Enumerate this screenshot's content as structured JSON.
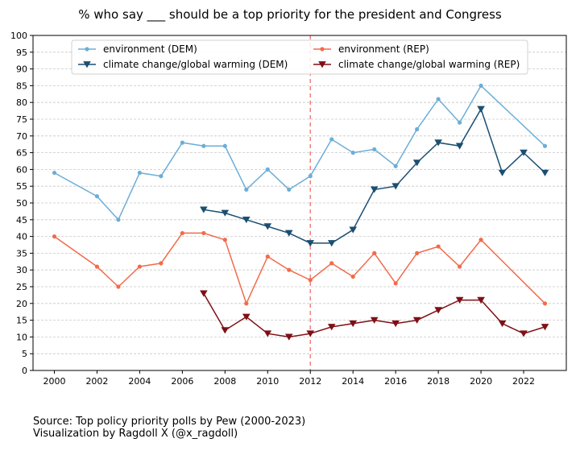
{
  "chart_data": {
    "type": "line",
    "title": "% who say ___ should be a top priority for the president and Congress",
    "xlabel": "",
    "ylabel": "",
    "xlim": [
      1999,
      2024
    ],
    "ylim": [
      0,
      100
    ],
    "xticks": [
      2000,
      2002,
      2004,
      2006,
      2008,
      2010,
      2012,
      2014,
      2016,
      2018,
      2020,
      2022
    ],
    "yticks": [
      0,
      5,
      10,
      15,
      20,
      25,
      30,
      35,
      40,
      45,
      50,
      55,
      60,
      65,
      70,
      75,
      80,
      85,
      90,
      95,
      100
    ],
    "grid": "y-dashed",
    "legend_position": "top",
    "vline": {
      "x": 2012,
      "color": "#f08080",
      "style": "dashed"
    },
    "series": [
      {
        "name": "environment (DEM)",
        "color": "#6baed6",
        "marker": "dot",
        "x": [
          2000,
          2002,
          2003,
          2004,
          2005,
          2006,
          2007,
          2008,
          2009,
          2010,
          2011,
          2012,
          2013,
          2014,
          2015,
          2016,
          2017,
          2018,
          2019,
          2020,
          2023
        ],
        "y": [
          59,
          52,
          45,
          59,
          58,
          68,
          67,
          67,
          54,
          60,
          54,
          58,
          69,
          65,
          66,
          61,
          72,
          81,
          74,
          85,
          67
        ]
      },
      {
        "name": "climate change/global warming (DEM)",
        "color": "#1b4f72",
        "marker": "triangle-down",
        "x": [
          2007,
          2008,
          2009,
          2010,
          2011,
          2012,
          2013,
          2014,
          2015,
          2016,
          2017,
          2018,
          2019,
          2020,
          2021,
          2022,
          2023
        ],
        "y": [
          48,
          47,
          45,
          43,
          41,
          38,
          38,
          42,
          54,
          55,
          62,
          68,
          67,
          78,
          59,
          65,
          59
        ]
      },
      {
        "name": "environment (REP)",
        "color": "#f26b4b",
        "marker": "dot",
        "x": [
          2000,
          2002,
          2003,
          2004,
          2005,
          2006,
          2007,
          2008,
          2009,
          2010,
          2011,
          2012,
          2013,
          2014,
          2015,
          2016,
          2017,
          2018,
          2019,
          2020,
          2023
        ],
        "y": [
          40,
          31,
          25,
          31,
          32,
          41,
          41,
          39,
          20,
          34,
          30,
          27,
          32,
          28,
          35,
          26,
          35,
          37,
          31,
          39,
          20
        ]
      },
      {
        "name": "climate change/global warming (REP)",
        "color": "#7f0f14",
        "marker": "triangle-down",
        "x": [
          2007,
          2008,
          2009,
          2010,
          2011,
          2012,
          2013,
          2014,
          2015,
          2016,
          2017,
          2018,
          2019,
          2020,
          2021,
          2022,
          2023
        ],
        "y": [
          23,
          12,
          16,
          11,
          10,
          11,
          13,
          14,
          15,
          14,
          15,
          18,
          21,
          21,
          14,
          11,
          13
        ]
      }
    ]
  },
  "footer": {
    "source": "Source: Top policy priority polls by Pew (2000-2023)",
    "credit": "Visualization by Ragdoll X (@x_ragdoll)"
  }
}
